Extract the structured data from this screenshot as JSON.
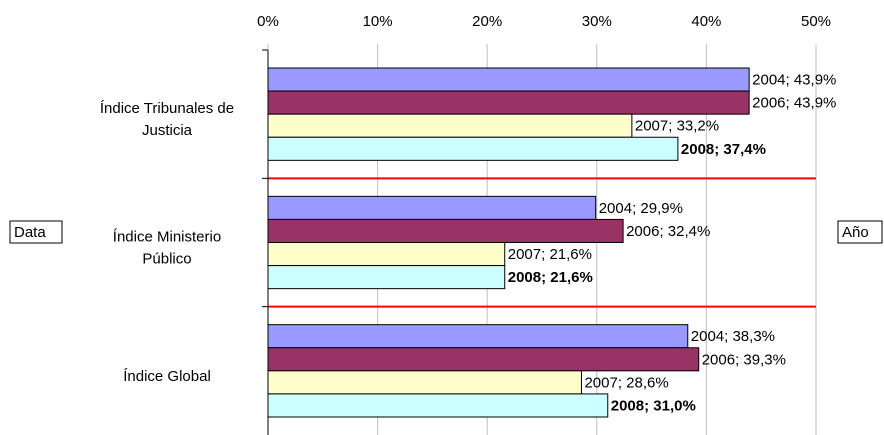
{
  "chart_data": {
    "type": "bar",
    "orientation": "horizontal",
    "categories": [
      "Índice Tribunales de\nJusticia",
      "Índice Ministerio\nPúblico",
      "Índice Global"
    ],
    "series": [
      {
        "name": "2004",
        "color": "#9999ff",
        "values": [
          43.9,
          29.9,
          38.3
        ],
        "value_labels": [
          "2004; 43,9%",
          "2004; 29,9%",
          "2004; 38,3%"
        ]
      },
      {
        "name": "2006",
        "color": "#993366",
        "values": [
          43.9,
          32.4,
          39.3
        ],
        "value_labels": [
          "2006; 43,9%",
          "2006; 32,4%",
          "2006; 39,3%"
        ]
      },
      {
        "name": "2007",
        "color": "#ffffcc",
        "values": [
          33.2,
          21.6,
          28.6
        ],
        "value_labels": [
          "2007; 33,2%",
          "2007; 21,6%",
          "2007; 28,6%"
        ]
      },
      {
        "name": "2008",
        "color": "#ccffff",
        "values": [
          37.4,
          21.6,
          31.0
        ],
        "value_labels": [
          "2008; 37,4%",
          "2008; 21,6%",
          "2008; 31,0%"
        ],
        "bold_labels": true
      }
    ],
    "xlim": [
      0,
      50
    ],
    "xticks": [
      {
        "value": 0,
        "label": "0%"
      },
      {
        "value": 10,
        "label": "10%"
      },
      {
        "value": 20,
        "label": "20%"
      },
      {
        "value": 30,
        "label": "30%"
      },
      {
        "value": 40,
        "label": "40%"
      },
      {
        "value": 50,
        "label": "50%"
      }
    ],
    "grid": true,
    "separator_color": "#ff0000",
    "data_field": "Data",
    "series_field": "Año"
  }
}
